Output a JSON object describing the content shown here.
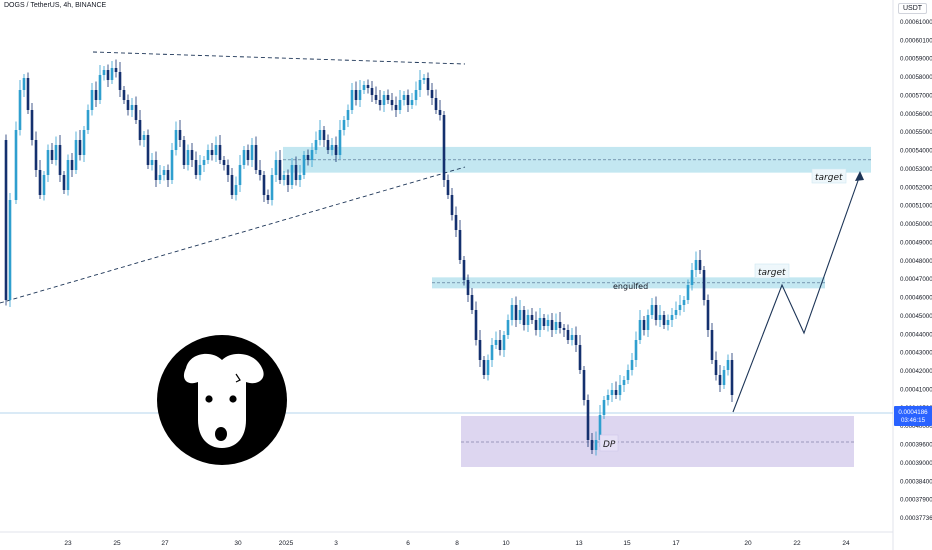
{
  "header": {
    "title": "DOGS / TetherUS, 4h, BINANCE"
  },
  "price_axis": {
    "currency": "USDT"
  },
  "colors": {
    "up": "#2f9fcf",
    "down": "#14306e",
    "zone_blue": "#b8e3ef",
    "zone_purple": "#d9d2ee",
    "current_price": "#2962ff",
    "line": "#1d3557"
  },
  "chart_data": {
    "type": "candlestick",
    "symbol": "DOGS / TetherUS",
    "interval": "4h",
    "exchange": "BINANCE",
    "ylim": [
      0.00037736,
      0.00061
    ],
    "y_scale": "log",
    "y_ticks": [
      "0.00061000",
      "0.00060100",
      "0.00059000",
      "0.00058000",
      "0.00057000",
      "0.00056000",
      "0.00055000",
      "0.00054000",
      "0.00053000",
      "0.00052000",
      "0.00051000",
      "0.00050000",
      "0.00049000",
      "0.00048000",
      "0.00047000",
      "0.00046000",
      "0.00045000",
      "0.00044000",
      "0.00043000",
      "0.00042000",
      "0.00041000",
      "0.00040500",
      "0.00040000",
      "0.00039600",
      "0.00039000",
      "0.00038400",
      "0.00037900",
      "0.00037736"
    ],
    "x_ticks": [
      "23",
      "25",
      "27",
      "30",
      "2025",
      "3",
      "6",
      "8",
      "10",
      "13",
      "15",
      "17",
      "20",
      "22",
      "24"
    ],
    "current_price": {
      "value": "0.0004186",
      "countdown": "03:46:15"
    },
    "annotations": {
      "engulfed_label": "engulfed",
      "target_1": "target",
      "target_2": "target",
      "dp_label": "DP"
    },
    "zones": [
      {
        "name": "resistance-zone",
        "from": 0.000528,
        "to": 0.000542
      },
      {
        "name": "engulfed-zone",
        "from": 0.000465,
        "to": 0.000471
      },
      {
        "name": "dp-zone",
        "from": 0.000394,
        "to": 0.000415
      }
    ],
    "trendlines": [
      {
        "name": "descending-trendline",
        "from": [
          "22",
          0.000592
        ],
        "to": [
          "7",
          0.000585
        ]
      },
      {
        "name": "ascending-trendline",
        "from": [
          "21",
          0.000462
        ],
        "to": [
          "8",
          0.000527
        ]
      }
    ]
  }
}
